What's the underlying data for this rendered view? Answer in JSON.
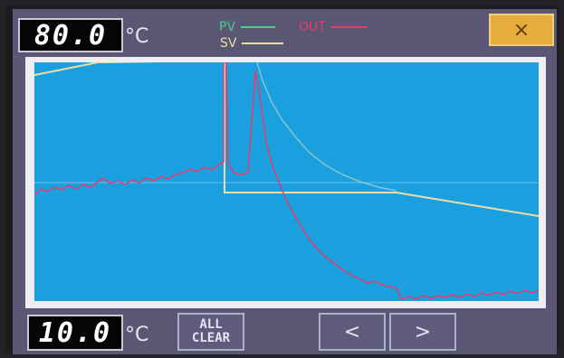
{
  "header": {
    "max_value": "80.0",
    "max_unit": "°C",
    "close_label": "×"
  },
  "legend": {
    "pv_label": "PV",
    "sv_label": "SV",
    "out_label": "OUT"
  },
  "footer": {
    "min_value": "10.0",
    "min_unit": "°C",
    "clear_label_line1": "ALL",
    "clear_label_line2": "CLEAR",
    "prev_label": "<",
    "next_label": ">"
  },
  "colors": {
    "plot_background": "#1aa0df",
    "pv": "#4ecb8c",
    "sv": "#f1dca8",
    "out": "#e83a6c",
    "close_button": "#e7ad3c"
  }
}
